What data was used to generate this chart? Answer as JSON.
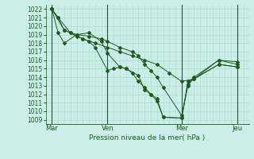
{
  "title": "Pression niveau de la mer( hPa )",
  "background_color": "#cceee8",
  "grid_color": "#aaddcc",
  "line_color": "#1e5c1e",
  "ylim": [
    1008.5,
    1022.5
  ],
  "ytick_min": 1009,
  "ytick_max": 1022,
  "day_labels": [
    "Mar",
    "Ven",
    "Mer",
    "Jeu"
  ],
  "day_positions": [
    0,
    72,
    168,
    240
  ],
  "xlim": [
    -8,
    255
  ],
  "series1_x": [
    0,
    8,
    16,
    24,
    32,
    40,
    48,
    56,
    72,
    80,
    88,
    96,
    104,
    112,
    120,
    128,
    136,
    144,
    168,
    176,
    184,
    216,
    240
  ],
  "series1_y": [
    1022.0,
    1021.0,
    1019.5,
    1019.2,
    1018.8,
    1018.5,
    1018.2,
    1017.5,
    1014.8,
    1015.0,
    1015.2,
    1015.0,
    1014.5,
    1013.5,
    1012.8,
    1012.0,
    1011.2,
    1009.3,
    1009.2,
    1013.2,
    1013.8,
    1015.5,
    1015.2
  ],
  "series2_x": [
    0,
    8,
    24,
    40,
    56,
    72,
    88,
    104,
    120,
    136,
    152,
    168,
    184,
    216,
    240
  ],
  "series2_y": [
    1022.0,
    1021.0,
    1019.2,
    1018.5,
    1018.0,
    1017.5,
    1017.0,
    1016.5,
    1016.0,
    1015.5,
    1014.5,
    1013.5,
    1013.8,
    1015.5,
    1015.2
  ],
  "series3_x": [
    0,
    8,
    16,
    32,
    48,
    64,
    72,
    88,
    96,
    112,
    120,
    128,
    136,
    144,
    168,
    176,
    184,
    216,
    240
  ],
  "series3_y": [
    1022.0,
    1019.2,
    1018.0,
    1019.0,
    1019.2,
    1018.2,
    1016.8,
    1015.2,
    1015.0,
    1014.2,
    1012.5,
    1012.0,
    1011.5,
    1009.3,
    1009.2,
    1013.5,
    1013.8,
    1016.0,
    1015.5
  ],
  "series4_x": [
    0,
    16,
    32,
    48,
    64,
    72,
    88,
    104,
    112,
    120,
    128,
    136,
    144,
    168,
    176,
    184,
    216,
    240
  ],
  "series4_y": [
    1022.0,
    1019.5,
    1019.0,
    1018.8,
    1018.5,
    1018.2,
    1017.5,
    1017.0,
    1016.5,
    1015.5,
    1014.8,
    1014.0,
    1012.8,
    1009.5,
    1013.0,
    1014.0,
    1016.0,
    1015.8
  ]
}
